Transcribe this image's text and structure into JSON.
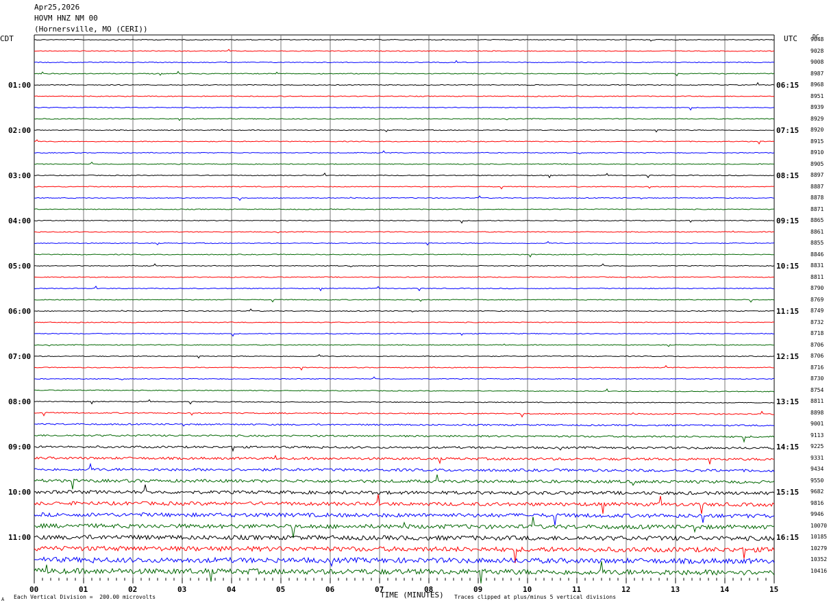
{
  "header": {
    "date": "Apr25,2026",
    "station": "HOVM HNZ NM 00",
    "location": "(Hornersville, MO (CERI))"
  },
  "left_tz": "CDT",
  "right_tz": "UTC",
  "dc_label": "DC",
  "footer": {
    "scale_note": "Each Vertical Division =  200.00 microvolts",
    "clip_note": "Traces clipped at plus/minus 5 vertical divisions",
    "corner_mark": "A"
  },
  "chart_data": {
    "type": "line",
    "xlabel": "TIME (MINUTES)",
    "x_ticks": [
      "00",
      "01",
      "02",
      "03",
      "04",
      "05",
      "06",
      "07",
      "08",
      "09",
      "10",
      "11",
      "12",
      "13",
      "14",
      "15"
    ],
    "xlim": [
      0,
      15
    ],
    "left_time_labels": [
      "01:00",
      "02:00",
      "03:00",
      "04:00",
      "05:00",
      "06:00",
      "07:00",
      "08:00",
      "09:00",
      "10:00",
      "11:00"
    ],
    "right_time_labels": [
      "06:15",
      "07:15",
      "08:15",
      "09:15",
      "10:15",
      "11:15",
      "12:15",
      "13:15",
      "14:15",
      "15:15",
      "16:15"
    ],
    "trace_colors": [
      "#000000",
      "#ff0000",
      "#0000ff",
      "#006600"
    ],
    "dc_offsets": [
      9048,
      9028,
      9008,
      8987,
      8968,
      8951,
      8939,
      8929,
      8920,
      8915,
      8910,
      8905,
      8897,
      8887,
      8878,
      8871,
      8865,
      8861,
      8855,
      8846,
      8831,
      8811,
      8790,
      8769,
      8749,
      8732,
      8718,
      8706,
      8706,
      8716,
      8730,
      8754,
      8811,
      8898,
      9001,
      9113,
      9225,
      9331,
      9434,
      9550,
      9682,
      9816,
      9946,
      10070,
      10185,
      10279,
      10352,
      10416
    ]
  }
}
